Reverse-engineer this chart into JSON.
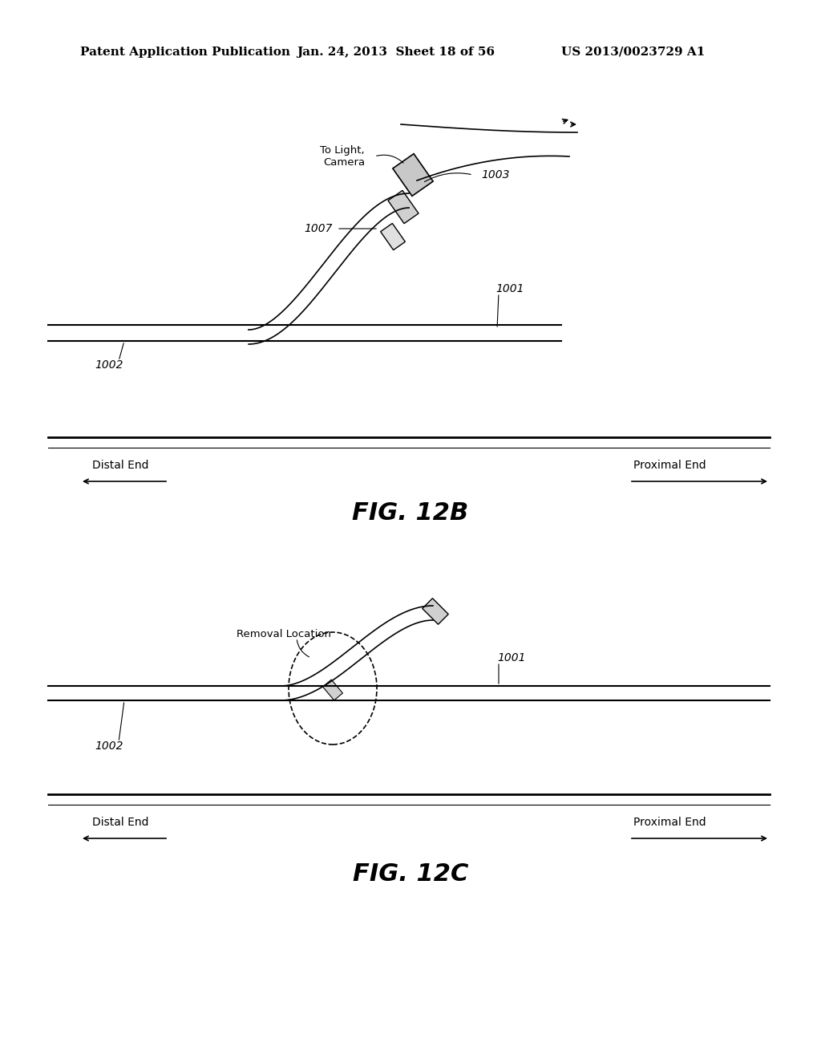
{
  "bg_color": "#ffffff",
  "header_text": "Patent Application Publication",
  "header_date": "Jan. 24, 2013  Sheet 18 of 56",
  "header_patent": "US 2013/0023729 A1",
  "fig12b_label": "FIG. 12B",
  "fig12c_label": "FIG. 12C",
  "distal_end": "Distal End",
  "proximal_end": "Proximal End",
  "label_1001": "1001",
  "label_1002": "1002",
  "label_1003": "1003",
  "label_1007": "1007",
  "label_removal": "Removal Location",
  "label_to_light": "To Light,\nCamera"
}
